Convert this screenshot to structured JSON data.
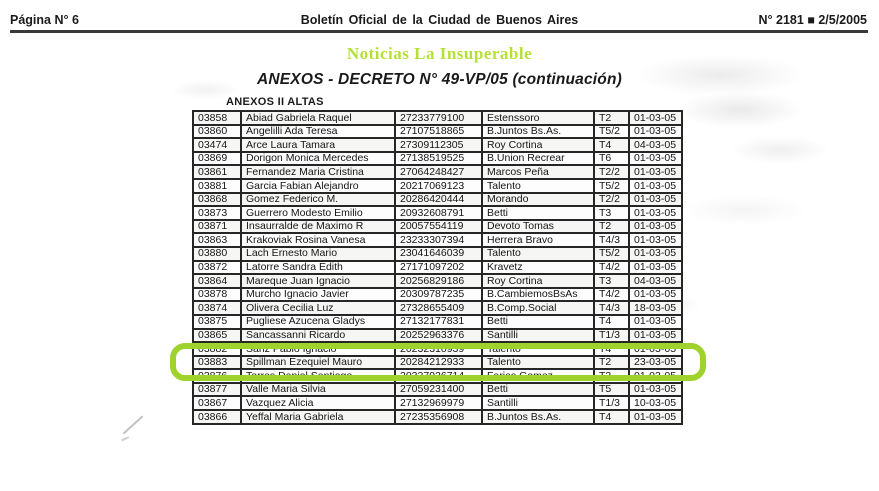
{
  "header": {
    "page_label": "Página N° 6",
    "journal_title": "Boletín Oficial de la Ciudad de Buenos Aires",
    "issue_label": "N° 2181 ■ 2/5/2005"
  },
  "watermark": {
    "text": "Noticias La Insuperable",
    "color": "#b5e136"
  },
  "content": {
    "title": "ANEXOS - DECRETO N° 49-VP/05 (continuación)",
    "table_caption": "ANEXOS II ALTAS"
  },
  "table": {
    "columns": [
      "record_id",
      "name",
      "cuil",
      "sponsor",
      "category",
      "date"
    ],
    "rows": [
      [
        "03858",
        "Abiad Gabriela Raquel",
        "27233779100",
        "Estenssoro",
        "T2",
        "01-03-05"
      ],
      [
        "03860",
        "Angelilli Ada Teresa",
        "27107518865",
        "B.Juntos Bs.As.",
        "T5/2",
        "01-03-05"
      ],
      [
        "03474",
        "Arce Laura Tamara",
        "27309112305",
        "Roy Cortina",
        "T4",
        "04-03-05"
      ],
      [
        "03869",
        "Dorigon Monica Mercedes",
        "27138519525",
        "B.Union Recrear",
        "T6",
        "01-03-05"
      ],
      [
        "03861",
        "Fernandez Maria Cristina",
        "27064248427",
        "Marcos Peña",
        "T2/2",
        "01-03-05"
      ],
      [
        "03881",
        "Garcia Fabian Alejandro",
        "20217069123",
        "Talento",
        "T5/2",
        "01-03-05"
      ],
      [
        "03868",
        "Gomez Federico M.",
        "20286420444",
        "Morando",
        "T2/2",
        "01-03-05"
      ],
      [
        "03873",
        "Guerrero Modesto Emilio",
        "20932608791",
        "Betti",
        "T3",
        "01-03-05"
      ],
      [
        "03871",
        "Insaurralde de Maximo R",
        "20057554119",
        "Devoto Tomas",
        "T2",
        "01-03-05"
      ],
      [
        "03863",
        "Krakoviak Rosina Vanesa",
        "23233307394",
        "Herrera Bravo",
        "T4/3",
        "01-03-05"
      ],
      [
        "03880",
        "Lach Ernesto Mario",
        "23041646039",
        "Talento",
        "T5/2",
        "01-03-05"
      ],
      [
        "03872",
        "Latorre Sandra Edith",
        "27171097202",
        "Kravetz",
        "T4/2",
        "01-03-05"
      ],
      [
        "03864",
        "Mareque Juan Ignacio",
        "20256829186",
        "Roy Cortina",
        "T3",
        "04-03-05"
      ],
      [
        "03878",
        "Murcho Ignacio Javier",
        "20309787235",
        "B.CambiemosBsAs",
        "T4/2",
        "01-03-05"
      ],
      [
        "03874",
        "Olivera Cecilia Luz",
        "27328655409",
        "B.Comp.Social",
        "T4/3",
        "18-03-05"
      ],
      [
        "03875",
        "Pugliese Azucena Gladys",
        "27132177831",
        "Betti",
        "T4",
        "01-03-05"
      ],
      [
        "03865",
        "Sancassanni Ricardo",
        "20252963376",
        "Santilli",
        "T1/3",
        "01-03-05"
      ],
      [
        "03882",
        "Sanz Pablo Ignacio",
        "20232310939",
        "Talento",
        "T4",
        "01-03-05"
      ],
      [
        "03883",
        "Spillman Ezequiel Mauro",
        "20284212933",
        "Talento",
        "T2",
        "23-03-05"
      ],
      [
        "03876",
        "Torres Daniel Santiago",
        "20327926714",
        "Farias Gomez",
        "T3",
        "01-03-05"
      ],
      [
        "03877",
        "Valle Maria Silvia",
        "27059231400",
        "Betti",
        "T5",
        "01-03-05"
      ],
      [
        "03867",
        "Vazquez Alicia",
        "27132969979",
        "Santilli",
        "T1/3",
        "10-03-05"
      ],
      [
        "03866",
        "Yeffal Maria Gabriela",
        "27235356908",
        "B.Juntos Bs.As.",
        "T4",
        "01-03-05"
      ]
    ],
    "highlight": {
      "row_id": "03865",
      "row_index": 16,
      "color": "#9fd22c"
    }
  }
}
